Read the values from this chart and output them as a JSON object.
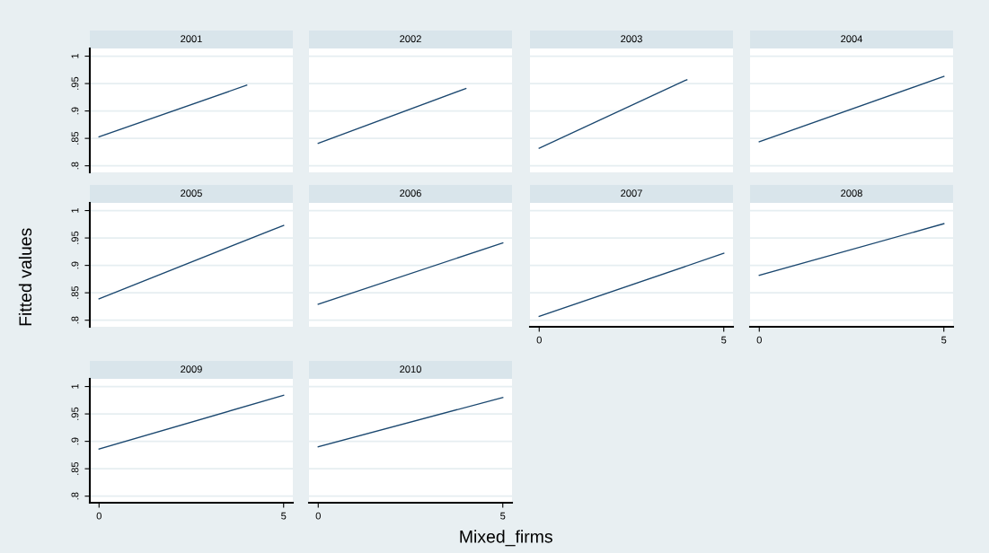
{
  "chart_data": [
    {
      "type": "line",
      "title": "2001",
      "x": [
        0,
        4
      ],
      "values": [
        0.853,
        0.947
      ],
      "color": "#1a476f",
      "xlim": [
        -0.25,
        5.25
      ],
      "ylim": [
        0.788,
        1.014
      ],
      "yticks": [
        {
          "value": 0.8,
          "label": ".8"
        },
        {
          "value": 0.85,
          "label": ".85"
        },
        {
          "value": 0.9,
          "label": ".9"
        },
        {
          "value": 0.95,
          "label": ".95"
        },
        1
      ],
      "tick_labels": "y",
      "grid": "y"
    },
    {
      "type": "line",
      "title": "2005",
      "ylabel": "Fitted values",
      "x": [
        0,
        5
      ],
      "values": [
        0.839,
        0.973
      ],
      "color": "#1a476f",
      "xlim": [
        -0.25,
        5.25
      ],
      "ylim": [
        0.788,
        1.014
      ],
      "yticks": [
        {
          "value": 0.8,
          "label": ".8"
        },
        {
          "value": 0.85,
          "label": ".85"
        },
        {
          "value": 0.9,
          "label": ".9"
        },
        {
          "value": 0.95,
          "label": ".95"
        },
        1
      ],
      "tick_labels": "y",
      "grid": "y"
    },
    {
      "type": "line",
      "title": "2009",
      "x": [
        0,
        5
      ],
      "values": [
        0.886,
        0.984
      ],
      "color": "#1a476f",
      "xlim": [
        -0.25,
        5.25
      ],
      "ylim": [
        0.788,
        1.014
      ],
      "xticks": [
        0,
        5
      ],
      "yticks": [
        {
          "value": 0.8,
          "label": ".8"
        },
        {
          "value": 0.85,
          "label": ".85"
        },
        {
          "value": 0.9,
          "label": ".9"
        },
        {
          "value": 0.95,
          "label": ".95"
        },
        1
      ],
      "grid": "y"
    },
    {
      "type": "line",
      "title": "2002",
      "x": [
        0,
        4
      ],
      "values": [
        0.841,
        0.941
      ],
      "color": "#1a476f",
      "xlim": [
        -0.25,
        5.25
      ],
      "ylim": [
        0.788,
        1.014
      ],
      "yticks": [
        {
          "value": 0.8,
          "label": null
        },
        {
          "value": 0.85,
          "label": null
        },
        {
          "value": 0.9,
          "label": null
        },
        {
          "value": 0.95,
          "label": null
        },
        {
          "value": 1,
          "label": null
        }
      ],
      "tick_labels": false,
      "grid": "y"
    },
    {
      "type": "line",
      "title": "2006",
      "x": [
        0,
        5
      ],
      "values": [
        0.829,
        0.941
      ],
      "color": "#1a476f",
      "xlim": [
        -0.25,
        5.25
      ],
      "ylim": [
        0.788,
        1.014
      ],
      "yticks": [
        {
          "value": 0.8,
          "label": null
        },
        {
          "value": 0.85,
          "label": null
        },
        {
          "value": 0.9,
          "label": null
        },
        {
          "value": 0.95,
          "label": null
        },
        {
          "value": 1,
          "label": null
        }
      ],
      "tick_labels": false,
      "grid": "y"
    },
    {
      "type": "line",
      "title": "2010",
      "xlabel": "Mixed_firms",
      "x": [
        0,
        5
      ],
      "values": [
        0.89,
        0.98
      ],
      "color": "#1a476f",
      "xlim": [
        -0.25,
        5.25
      ],
      "ylim": [
        0.788,
        1.014
      ],
      "xticks": [
        0,
        5
      ],
      "yticks": [
        {
          "value": 0.8,
          "label": null
        },
        {
          "value": 0.85,
          "label": null
        },
        {
          "value": 0.9,
          "label": null
        },
        {
          "value": 0.95,
          "label": null
        },
        {
          "value": 1,
          "label": null
        }
      ],
      "tick_labels": "x",
      "grid": "y"
    },
    {
      "type": "line",
      "title": "2003",
      "x": [
        0,
        4
      ],
      "values": [
        0.832,
        0.957
      ],
      "color": "#1a476f",
      "xlim": [
        -0.25,
        5.25
      ],
      "ylim": [
        0.788,
        1.014
      ],
      "yticks": [
        {
          "value": 0.8,
          "label": null
        },
        {
          "value": 0.85,
          "label": null
        },
        {
          "value": 0.9,
          "label": null
        },
        {
          "value": 0.95,
          "label": null
        },
        {
          "value": 1,
          "label": null
        }
      ],
      "tick_labels": false,
      "grid": "y"
    },
    {
      "type": "line",
      "title": "2007",
      "x": [
        0,
        5
      ],
      "values": [
        0.807,
        0.922
      ],
      "color": "#1a476f",
      "xlim": [
        -0.25,
        5.25
      ],
      "ylim": [
        0.788,
        1.014
      ],
      "xticks": [
        0,
        5
      ],
      "yticks": [
        {
          "value": 0.8,
          "label": null
        },
        {
          "value": 0.85,
          "label": null
        },
        {
          "value": 0.9,
          "label": null
        },
        {
          "value": 0.95,
          "label": null
        },
        {
          "value": 1,
          "label": null
        }
      ],
      "tick_labels": "x",
      "grid": "y"
    },
    {
      "type": "line",
      "title": "2004",
      "x": [
        0,
        5
      ],
      "values": [
        0.844,
        0.963
      ],
      "color": "#1a476f",
      "xlim": [
        -0.25,
        5.25
      ],
      "ylim": [
        0.788,
        1.014
      ],
      "yticks": [
        {
          "value": 0.8,
          "label": null
        },
        {
          "value": 0.85,
          "label": null
        },
        {
          "value": 0.9,
          "label": null
        },
        {
          "value": 0.95,
          "label": null
        },
        {
          "value": 1,
          "label": null
        }
      ],
      "tick_labels": false,
      "grid": "y"
    },
    {
      "type": "line",
      "title": "2008",
      "x": [
        0,
        5
      ],
      "values": [
        0.882,
        0.976
      ],
      "color": "#1a476f",
      "xlim": [
        -0.25,
        5.25
      ],
      "ylim": [
        0.788,
        1.014
      ],
      "xticks": [
        0,
        5
      ],
      "yticks": [
        {
          "value": 0.8,
          "label": null
        },
        {
          "value": 0.85,
          "label": null
        },
        {
          "value": 0.9,
          "label": null
        },
        {
          "value": 0.95,
          "label": null
        },
        {
          "value": 1,
          "label": null
        }
      ],
      "tick_labels": "x",
      "grid": "y"
    }
  ]
}
